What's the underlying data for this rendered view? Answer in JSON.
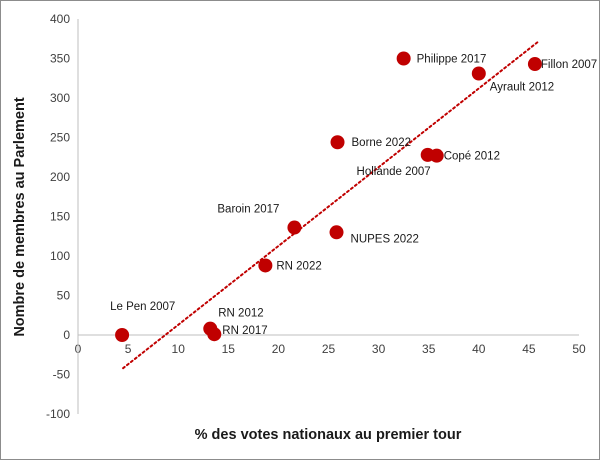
{
  "chart_data": {
    "type": "scatter",
    "xlabel": "% des votes nationaux au premier tour",
    "ylabel": "Nombre de membres au Parlement",
    "xlim": [
      0,
      50
    ],
    "ylim": [
      -100,
      400
    ],
    "xticks": [
      0,
      5,
      10,
      15,
      20,
      25,
      30,
      35,
      40,
      45,
      50
    ],
    "yticks": [
      -100,
      -50,
      0,
      50,
      100,
      150,
      200,
      250,
      300,
      350,
      400
    ],
    "grid": false,
    "legend": "none",
    "marker_color": "#c00000",
    "trendline": {
      "style": "dotted",
      "color": "#c00000",
      "from": [
        4.5,
        -42
      ],
      "to": [
        46,
        372
      ]
    },
    "points": [
      {
        "label": "Le Pen 2007",
        "x": 4.4,
        "y": 0
      },
      {
        "label": "RN 2012",
        "x": 13.2,
        "y": 8
      },
      {
        "label": "RN 2017",
        "x": 13.6,
        "y": 1
      },
      {
        "label": "RN 2022",
        "x": 18.7,
        "y": 88
      },
      {
        "label": "Baroin 2017",
        "x": 21.6,
        "y": 136
      },
      {
        "label": "Borne 2022",
        "x": 25.9,
        "y": 244
      },
      {
        "label": "NUPES 2022",
        "x": 25.8,
        "y": 130
      },
      {
        "label": "Philippe 2017",
        "x": 32.5,
        "y": 350
      },
      {
        "label": "Hollande 2007",
        "x": 34.9,
        "y": 228
      },
      {
        "label": "Copé 2012",
        "x": 35.8,
        "y": 227
      },
      {
        "label": "Ayrault 2012",
        "x": 40.0,
        "y": 331
      },
      {
        "label": "Fillon 2007",
        "x": 45.6,
        "y": 343
      }
    ]
  }
}
